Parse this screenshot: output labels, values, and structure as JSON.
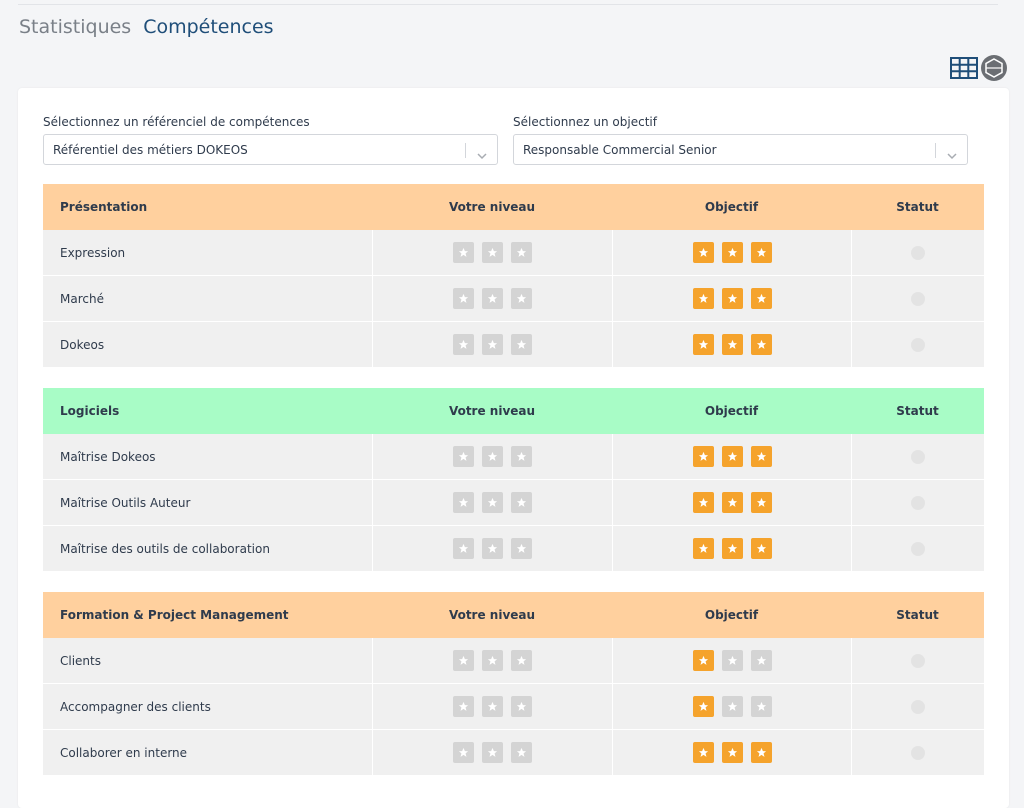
{
  "tabs": {
    "statistics": "Statistiques",
    "competences": "Compétences"
  },
  "view_icons": [
    "table-view-icon",
    "chart-view-icon"
  ],
  "selectors": {
    "referential": {
      "label": "Sélectionnez un référenciel de compétences",
      "value": "Référentiel des métiers DOKEOS"
    },
    "objective": {
      "label": "Sélectionnez un objectif",
      "value": "Responsable Commercial Senior"
    }
  },
  "columns": {
    "level": "Votre niveau",
    "objective": "Objectif",
    "status": "Statut"
  },
  "colors": {
    "orange_header": "#ffd09e",
    "green_header": "#a8fcc6",
    "star_on": "#f5a32c",
    "star_off": "#d4d4d4"
  },
  "sections": [
    {
      "name": "Présentation",
      "color": "#ffd09e",
      "rows": [
        {
          "label": "Expression",
          "level": 0,
          "objective": 3
        },
        {
          "label": "Marché",
          "level": 0,
          "objective": 3
        },
        {
          "label": "Dokeos",
          "level": 0,
          "objective": 3
        }
      ]
    },
    {
      "name": "Logiciels",
      "color": "#a8fcc6",
      "rows": [
        {
          "label": "Maîtrise Dokeos",
          "level": 0,
          "objective": 3
        },
        {
          "label": "Maîtrise Outils Auteur",
          "level": 0,
          "objective": 3
        },
        {
          "label": "Maîtrise des outils de collaboration",
          "level": 0,
          "objective": 3
        }
      ]
    },
    {
      "name": "Formation & Project Management",
      "color": "#ffd09e",
      "rows": [
        {
          "label": "Clients",
          "level": 0,
          "objective": 1
        },
        {
          "label": "Accompagner des clients",
          "level": 0,
          "objective": 1
        },
        {
          "label": "Collaborer en interne",
          "level": 0,
          "objective": 3
        }
      ]
    }
  ]
}
